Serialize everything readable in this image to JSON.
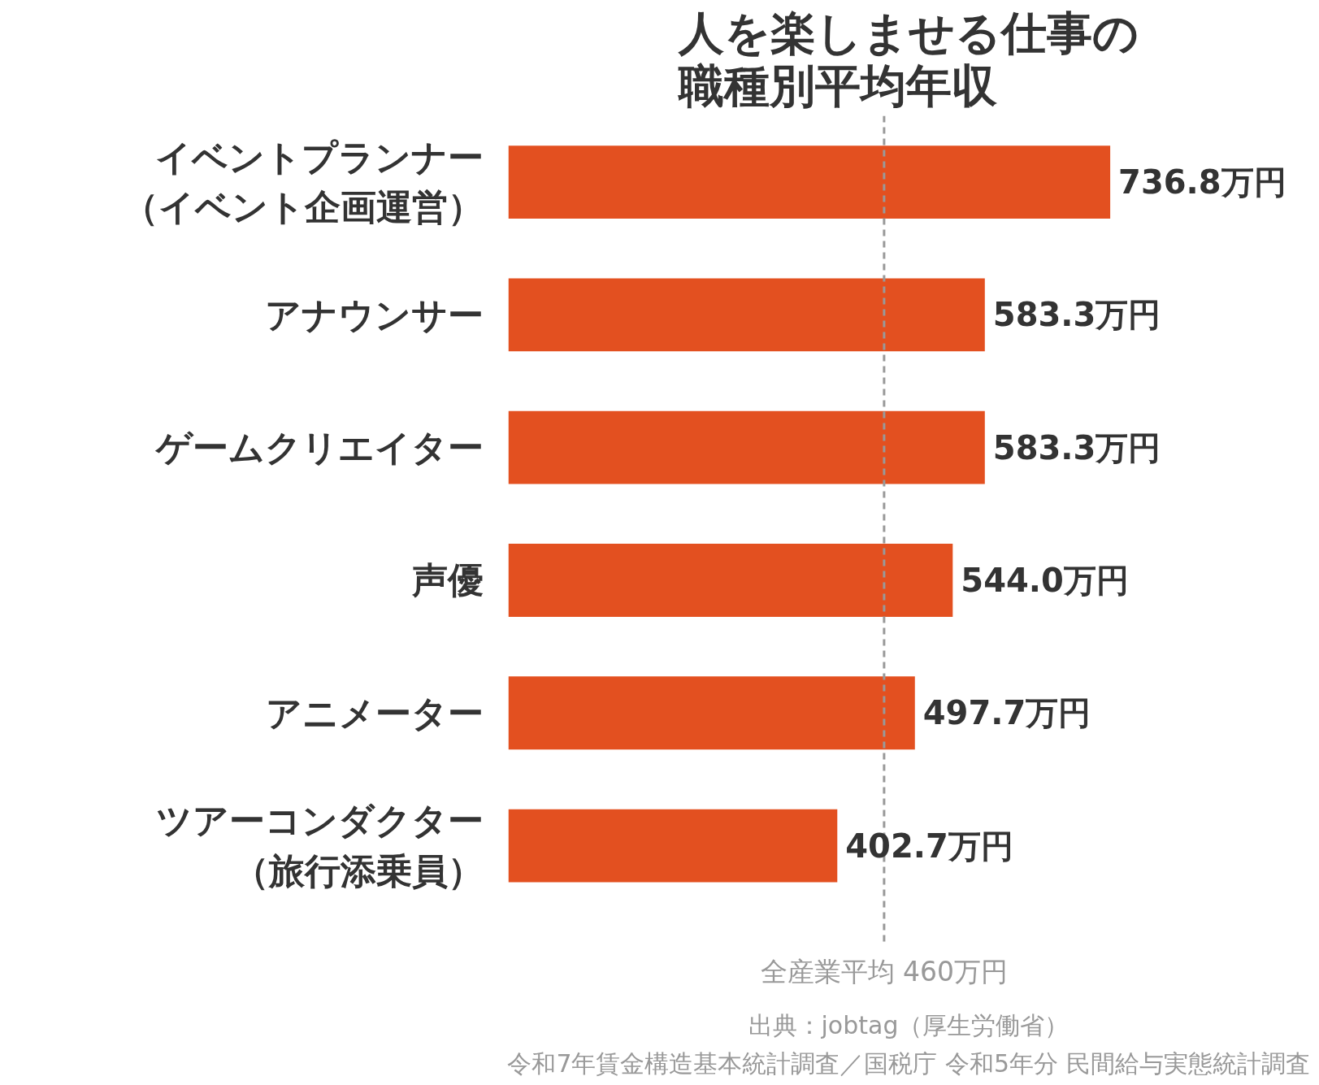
{
  "chart_data": {
    "type": "bar",
    "orientation": "horizontal",
    "title": "人を楽しませる仕事の職種別平均年収",
    "categories": [
      "イベントプランナー（イベント企画運営）",
      "アナウンサー",
      "ゲームクリエイター",
      "声優",
      "アニメーター",
      "ツアーコンダクター（旅行添乗員）"
    ],
    "values": [
      736.8,
      583.3,
      583.3,
      544.0,
      497.7,
      402.7
    ],
    "value_labels": [
      "736.8万円",
      "583.3万円",
      "583.3万円",
      "544.0万円",
      "497.7万円",
      "402.7万円"
    ],
    "color": "#e35020",
    "ref_lines": [
      {
        "axis": "x",
        "value": 460,
        "label": "全産業平均 460万円",
        "color": "#999999",
        "line_style": "dashed"
      }
    ],
    "annotations": [
      "出典：jobtag（厚生労働省）",
      "令和7年賃金構造基本統計調査／国税庁 令和5年分 民間給与実態統計調査"
    ],
    "grid": false
  }
}
